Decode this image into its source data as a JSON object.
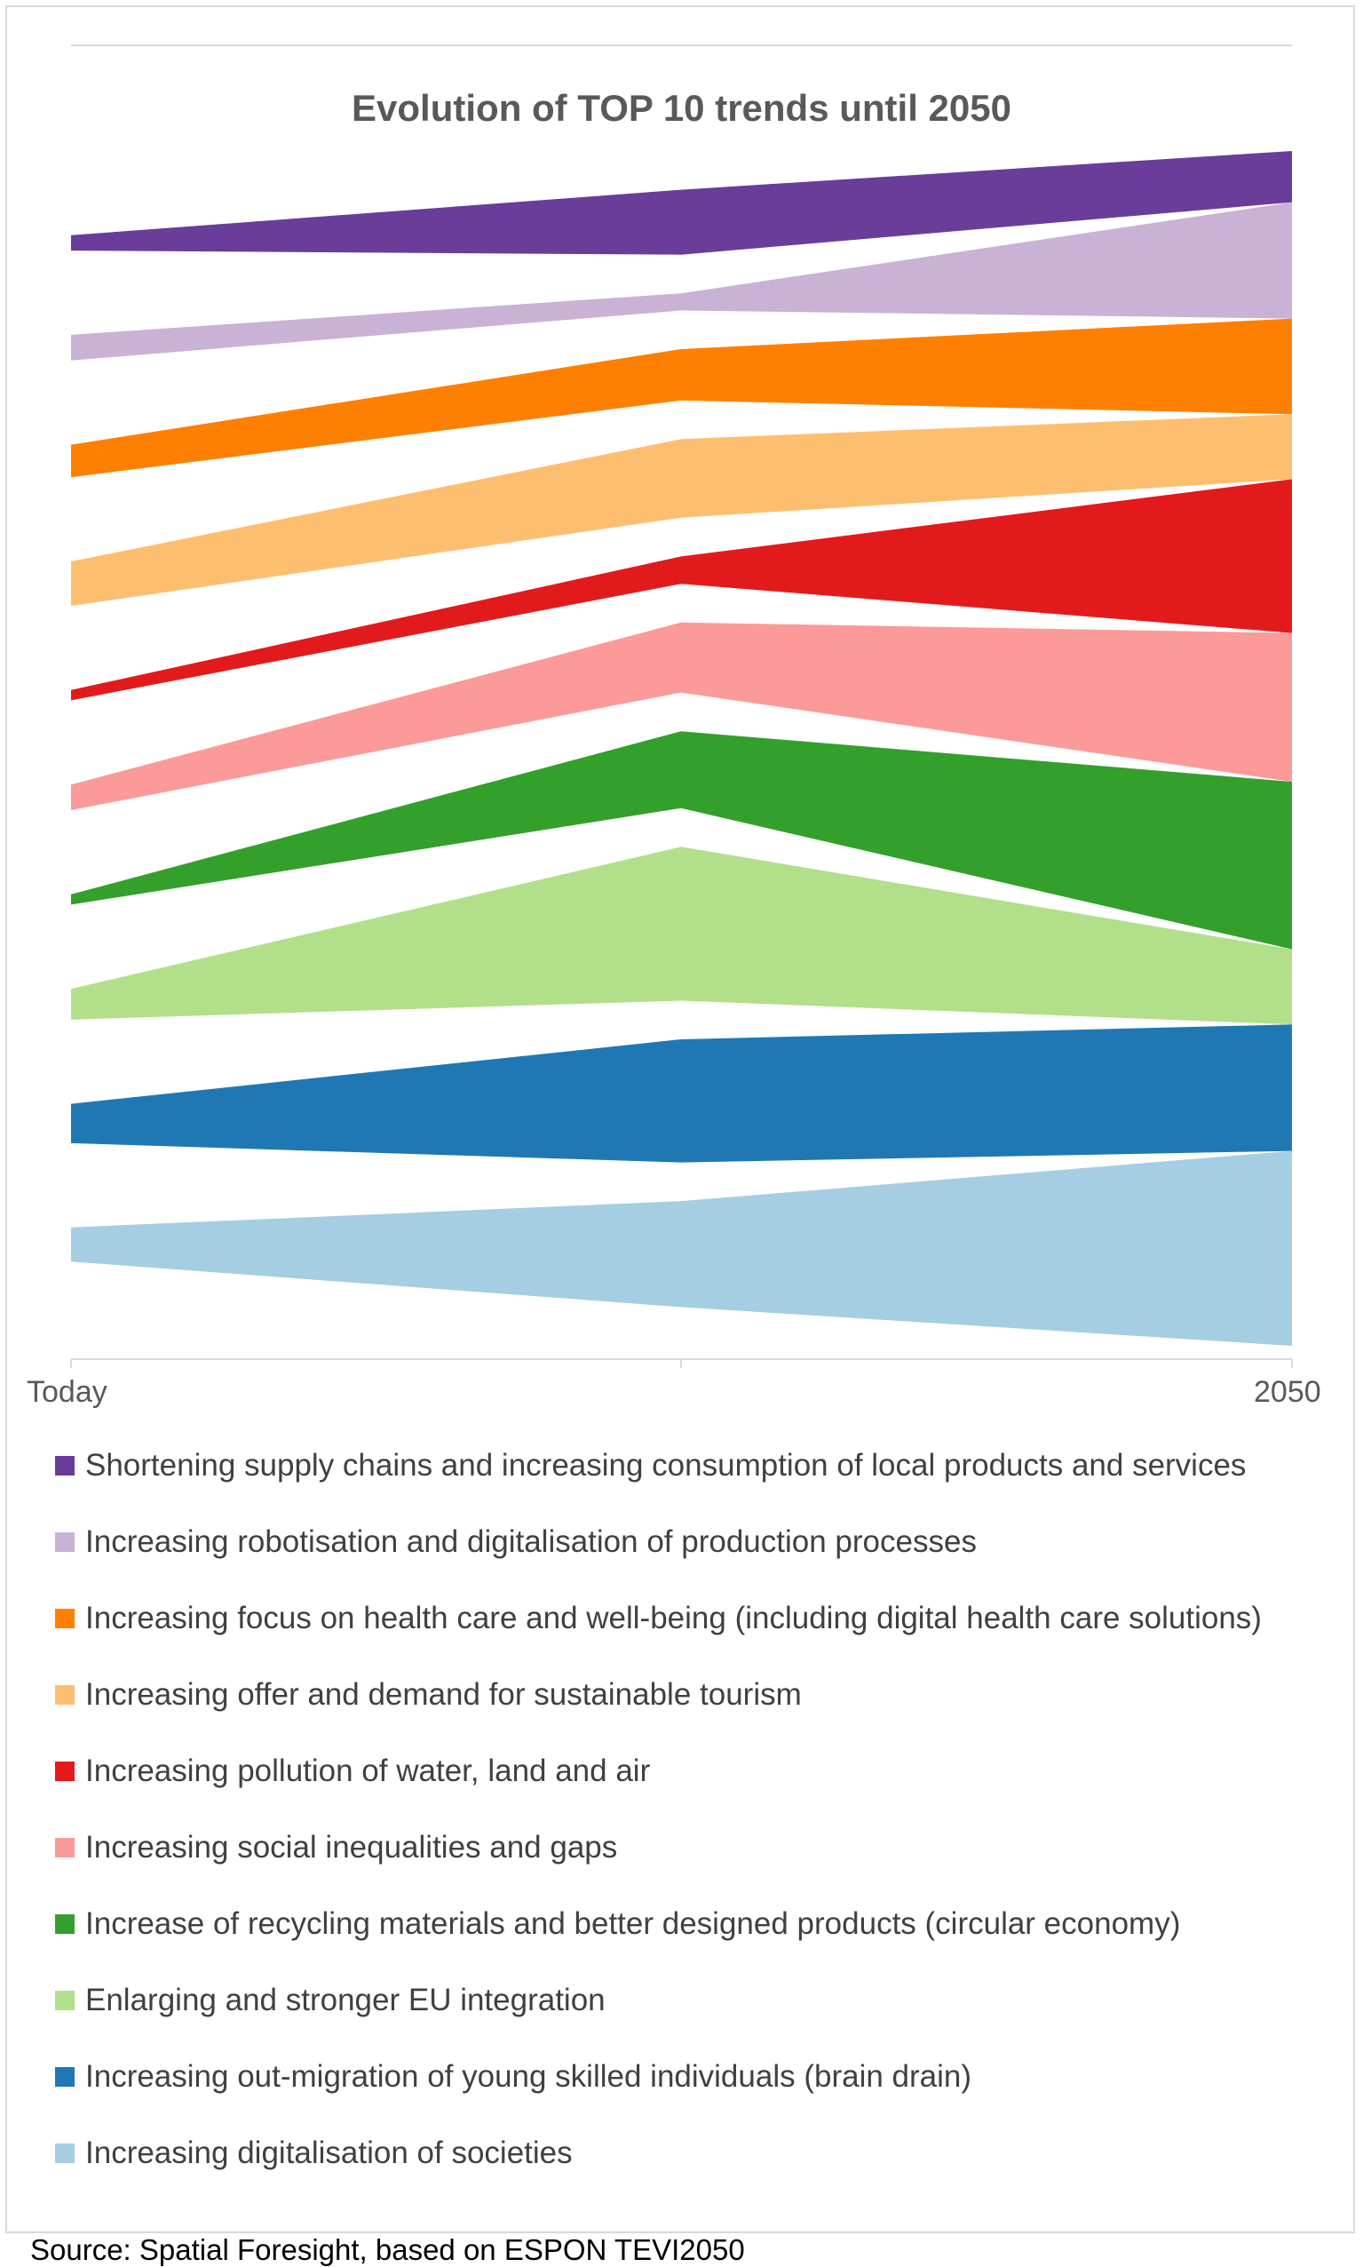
{
  "chart_data": {
    "type": "area",
    "title": "Evolution of TOP 10 trends until 2050",
    "x": [
      "Today",
      "",
      "2050"
    ],
    "x_tick_labels_shown": [
      "Today",
      "2050"
    ],
    "grid": false,
    "legend_position": "bottom",
    "series": [
      {
        "name": "Shortening supply chains and increasing consumption of local products and services",
        "color": "#6a3d9a",
        "values": [
          0.9,
          3.8,
          3.0
        ]
      },
      {
        "name": "Increasing robotisation and digitalisation of production processes",
        "color": "#cab2d6",
        "values": [
          1.5,
          1.0,
          6.8
        ]
      },
      {
        "name": "Increasing focus on health care and well-being (including digital health care solutions)",
        "color": "#ff7f00",
        "values": [
          1.9,
          3.0,
          5.6
        ]
      },
      {
        "name": "Increasing offer and demand for sustainable tourism",
        "color": "#fdbf6f",
        "values": [
          2.6,
          4.6,
          3.8
        ]
      },
      {
        "name": "Increasing pollution of water, land and air",
        "color": "#e31a1c",
        "values": [
          0.6,
          1.6,
          9.0
        ]
      },
      {
        "name": "Increasing social inequalities and gaps",
        "color": "#fb9a99",
        "values": [
          1.5,
          4.1,
          8.7
        ]
      },
      {
        "name": "Increase of recycling materials and better designed products (circular economy)",
        "color": "#33a02c",
        "values": [
          0.6,
          4.5,
          9.8
        ]
      },
      {
        "name": "Enlarging and stronger EU integration",
        "color": "#b2df8a",
        "values": [
          1.8,
          9.0,
          4.4
        ]
      },
      {
        "name": "Increasing out-migration of young skilled individuals (brain drain)",
        "color": "#1f78b4",
        "values": [
          2.3,
          7.2,
          7.4
        ]
      },
      {
        "name": "Increasing digitalisation of societies",
        "color": "#a6cee3",
        "values": [
          2.0,
          6.2,
          11.4
        ]
      }
    ]
  },
  "source": "Source: Spatial Foresight, based on ESPON TEVI2050"
}
